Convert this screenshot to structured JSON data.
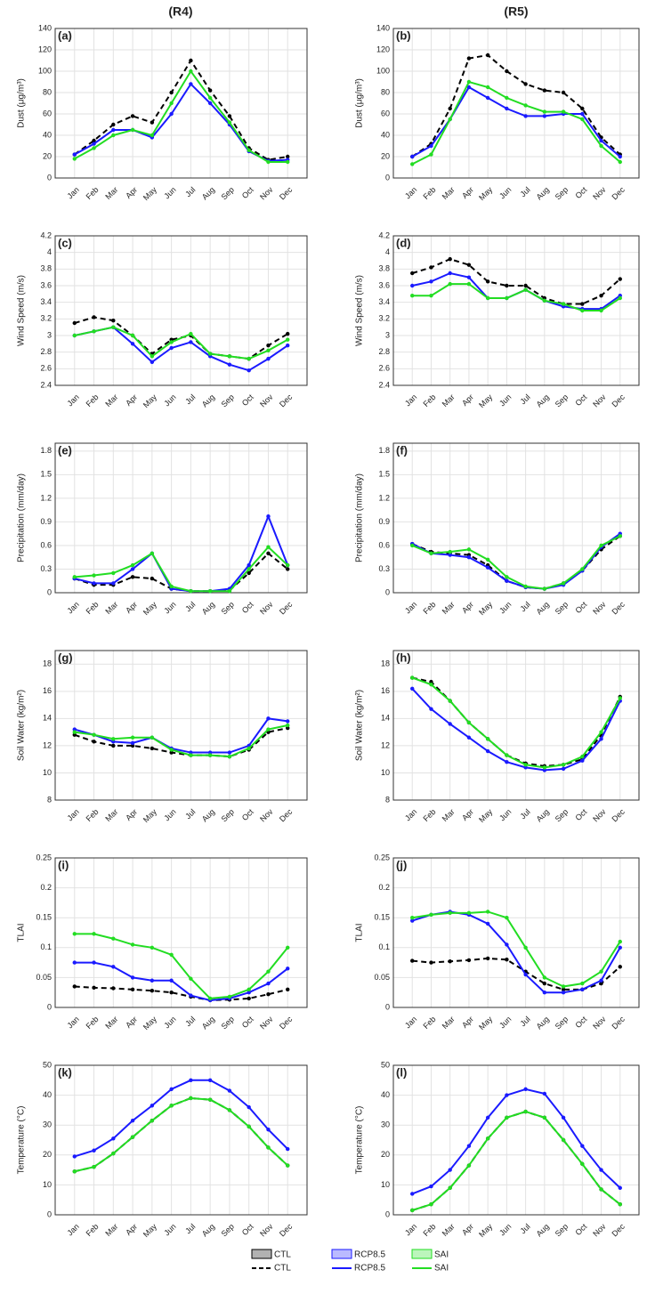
{
  "columns": [
    "(R4)",
    "(R5)"
  ],
  "chart_data": [
    {
      "type": "line",
      "label": "(a)",
      "ylabel": "Dust (μg/m³)",
      "ylim": [
        0,
        140
      ],
      "yticks": [
        0,
        20,
        40,
        60,
        80,
        100,
        120,
        140
      ],
      "grid": true,
      "categories": [
        "Jan",
        "Feb",
        "Mar",
        "Apr",
        "May",
        "Jun",
        "Jul",
        "Aug",
        "Sep",
        "Oct",
        "Nov",
        "Dec"
      ],
      "series": [
        {
          "name": "CTL",
          "color": "#000000",
          "linestyle": "dashed",
          "values": [
            22,
            35,
            50,
            58,
            52,
            80,
            110,
            82,
            58,
            28,
            17,
            20
          ]
        },
        {
          "name": "RCP8.5",
          "color": "#1a1aff",
          "linestyle": "solid",
          "values": [
            22,
            32,
            45,
            45,
            38,
            60,
            88,
            70,
            50,
            25,
            16,
            17
          ]
        },
        {
          "name": "SAI",
          "color": "#22dd22",
          "linestyle": "solid",
          "values": [
            18,
            28,
            40,
            45,
            40,
            70,
            100,
            75,
            52,
            26,
            15,
            15
          ]
        }
      ]
    },
    {
      "type": "line",
      "label": "(b)",
      "ylabel": "Dust (μg/m³)",
      "ylim": [
        0,
        140
      ],
      "yticks": [
        0,
        20,
        40,
        60,
        80,
        100,
        120,
        140
      ],
      "grid": true,
      "categories": [
        "Jan",
        "Feb",
        "Mar",
        "Apr",
        "May",
        "Jun",
        "Jul",
        "Aug",
        "Sep",
        "Oct",
        "Nov",
        "Dec"
      ],
      "series": [
        {
          "name": "CTL",
          "color": "#000000",
          "linestyle": "dashed",
          "values": [
            20,
            32,
            65,
            112,
            115,
            100,
            88,
            82,
            80,
            65,
            38,
            22
          ]
        },
        {
          "name": "RCP8.5",
          "color": "#1a1aff",
          "linestyle": "solid",
          "values": [
            20,
            30,
            55,
            85,
            75,
            65,
            58,
            58,
            60,
            60,
            35,
            20
          ]
        },
        {
          "name": "SAI",
          "color": "#22dd22",
          "linestyle": "solid",
          "values": [
            13,
            22,
            55,
            90,
            85,
            75,
            68,
            62,
            62,
            55,
            30,
            15
          ]
        }
      ]
    },
    {
      "type": "line",
      "label": "(c)",
      "ylabel": "Wind Speed (m/s)",
      "ylim": [
        2.4,
        4.2
      ],
      "yticks": [
        2.4,
        2.6,
        2.8,
        3,
        3.2,
        3.4,
        3.6,
        3.8,
        4,
        4.2
      ],
      "grid": true,
      "categories": [
        "Jan",
        "Feb",
        "Mar",
        "Apr",
        "May",
        "Jun",
        "Jul",
        "Aug",
        "Sep",
        "Oct",
        "Nov",
        "Dec"
      ],
      "series": [
        {
          "name": "CTL",
          "color": "#000000",
          "linestyle": "dashed",
          "values": [
            3.15,
            3.22,
            3.18,
            3.0,
            2.78,
            2.95,
            3.0,
            2.78,
            2.75,
            2.72,
            2.88,
            3.02
          ]
        },
        {
          "name": "RCP8.5",
          "color": "#1a1aff",
          "linestyle": "solid",
          "values": [
            3.0,
            3.05,
            3.1,
            2.9,
            2.68,
            2.85,
            2.92,
            2.75,
            2.65,
            2.58,
            2.72,
            2.88
          ]
        },
        {
          "name": "SAI",
          "color": "#22dd22",
          "linestyle": "solid",
          "values": [
            3.0,
            3.05,
            3.1,
            3.0,
            2.75,
            2.92,
            3.02,
            2.78,
            2.75,
            2.72,
            2.82,
            2.95
          ]
        }
      ]
    },
    {
      "type": "line",
      "label": "(d)",
      "ylabel": "Wind Speed (m/s)",
      "ylim": [
        2.4,
        4.2
      ],
      "yticks": [
        2.4,
        2.6,
        2.8,
        3,
        3.2,
        3.4,
        3.6,
        3.8,
        4,
        4.2
      ],
      "grid": true,
      "categories": [
        "Jan",
        "Feb",
        "Mar",
        "Apr",
        "May",
        "Jun",
        "Jul",
        "Aug",
        "Sep",
        "Oct",
        "Nov",
        "Dec"
      ],
      "series": [
        {
          "name": "CTL",
          "color": "#000000",
          "linestyle": "dashed",
          "values": [
            3.75,
            3.82,
            3.92,
            3.85,
            3.65,
            3.6,
            3.6,
            3.45,
            3.38,
            3.38,
            3.48,
            3.68
          ]
        },
        {
          "name": "RCP8.5",
          "color": "#1a1aff",
          "linestyle": "solid",
          "values": [
            3.6,
            3.65,
            3.75,
            3.7,
            3.45,
            3.45,
            3.55,
            3.42,
            3.35,
            3.32,
            3.32,
            3.48
          ]
        },
        {
          "name": "SAI",
          "color": "#22dd22",
          "linestyle": "solid",
          "values": [
            3.48,
            3.48,
            3.62,
            3.62,
            3.45,
            3.45,
            3.55,
            3.42,
            3.38,
            3.3,
            3.3,
            3.45
          ]
        }
      ]
    },
    {
      "type": "line",
      "label": "(e)",
      "ylabel": "Precipitation (mm/day)",
      "ylim": [
        0,
        1.9
      ],
      "yticks": [
        0,
        0.3,
        0.6,
        0.9,
        1.2,
        1.5,
        1.8
      ],
      "grid": true,
      "categories": [
        "Jan",
        "Feb",
        "Mar",
        "Apr",
        "May",
        "Jun",
        "Jul",
        "Aug",
        "Sep",
        "Oct",
        "Nov",
        "Dec"
      ],
      "series": [
        {
          "name": "CTL",
          "color": "#000000",
          "linestyle": "dashed",
          "values": [
            0.18,
            0.1,
            0.1,
            0.2,
            0.18,
            0.05,
            0.02,
            0.02,
            0.03,
            0.25,
            0.5,
            0.3
          ]
        },
        {
          "name": "RCP8.5",
          "color": "#1a1aff",
          "linestyle": "solid",
          "values": [
            0.18,
            0.12,
            0.12,
            0.3,
            0.5,
            0.05,
            0.02,
            0.02,
            0.05,
            0.35,
            0.97,
            0.35
          ]
        },
        {
          "name": "SAI",
          "color": "#22dd22",
          "linestyle": "solid",
          "values": [
            0.2,
            0.22,
            0.25,
            0.35,
            0.5,
            0.08,
            0.02,
            0.02,
            0.02,
            0.3,
            0.58,
            0.35
          ]
        }
      ]
    },
    {
      "type": "line",
      "label": "(f)",
      "ylabel": "Precipitation (mm/day)",
      "ylim": [
        0,
        1.9
      ],
      "yticks": [
        0,
        0.3,
        0.6,
        0.9,
        1.2,
        1.5,
        1.8
      ],
      "grid": true,
      "categories": [
        "Jan",
        "Feb",
        "Mar",
        "Apr",
        "May",
        "Jun",
        "Jul",
        "Aug",
        "Sep",
        "Oct",
        "Nov",
        "Dec"
      ],
      "series": [
        {
          "name": "CTL",
          "color": "#000000",
          "linestyle": "dashed",
          "values": [
            0.62,
            0.52,
            0.5,
            0.48,
            0.35,
            0.15,
            0.07,
            0.05,
            0.12,
            0.28,
            0.55,
            0.72
          ]
        },
        {
          "name": "RCP8.5",
          "color": "#1a1aff",
          "linestyle": "solid",
          "values": [
            0.62,
            0.5,
            0.48,
            0.45,
            0.32,
            0.15,
            0.07,
            0.05,
            0.1,
            0.28,
            0.58,
            0.75
          ]
        },
        {
          "name": "SAI",
          "color": "#22dd22",
          "linestyle": "solid",
          "values": [
            0.6,
            0.5,
            0.52,
            0.55,
            0.42,
            0.2,
            0.08,
            0.05,
            0.12,
            0.3,
            0.6,
            0.72
          ]
        }
      ]
    },
    {
      "type": "line",
      "label": "(g)",
      "ylabel": "Soil Water (kg/m²)",
      "ylim": [
        8,
        19
      ],
      "yticks": [
        8,
        10,
        12,
        14,
        16,
        18
      ],
      "grid": true,
      "categories": [
        "Jan",
        "Feb",
        "Mar",
        "Apr",
        "May",
        "Jun",
        "Jul",
        "Aug",
        "Sep",
        "Oct",
        "Nov",
        "Dec"
      ],
      "series": [
        {
          "name": "CTL",
          "color": "#000000",
          "linestyle": "dashed",
          "values": [
            12.8,
            12.3,
            12.0,
            12.0,
            11.8,
            11.5,
            11.3,
            11.3,
            11.2,
            11.7,
            13.0,
            13.3
          ]
        },
        {
          "name": "RCP8.5",
          "color": "#1a1aff",
          "linestyle": "solid",
          "values": [
            13.2,
            12.8,
            12.3,
            12.2,
            12.6,
            11.8,
            11.5,
            11.5,
            11.5,
            12.0,
            14.0,
            13.8
          ]
        },
        {
          "name": "SAI",
          "color": "#22dd22",
          "linestyle": "solid",
          "values": [
            13.0,
            12.8,
            12.5,
            12.6,
            12.6,
            11.7,
            11.3,
            11.3,
            11.2,
            11.8,
            13.2,
            13.5
          ]
        }
      ]
    },
    {
      "type": "line",
      "label": "(h)",
      "ylabel": "Soil Water (kg/m²)",
      "ylim": [
        8,
        19
      ],
      "yticks": [
        8,
        10,
        12,
        14,
        16,
        18
      ],
      "grid": true,
      "categories": [
        "Jan",
        "Feb",
        "Mar",
        "Apr",
        "May",
        "Jun",
        "Jul",
        "Aug",
        "Sep",
        "Oct",
        "Nov",
        "Dec"
      ],
      "series": [
        {
          "name": "CTL",
          "color": "#000000",
          "linestyle": "dashed",
          "values": [
            17.0,
            16.7,
            15.3,
            13.7,
            12.5,
            11.3,
            10.7,
            10.5,
            10.6,
            11.0,
            12.8,
            15.6
          ]
        },
        {
          "name": "RCP8.5",
          "color": "#1a1aff",
          "linestyle": "solid",
          "values": [
            16.2,
            14.7,
            13.6,
            12.6,
            11.6,
            10.8,
            10.4,
            10.2,
            10.3,
            10.9,
            12.5,
            15.3
          ]
        },
        {
          "name": "SAI",
          "color": "#22dd22",
          "linestyle": "solid",
          "values": [
            17.0,
            16.5,
            15.3,
            13.7,
            12.5,
            11.3,
            10.6,
            10.4,
            10.6,
            11.2,
            13.0,
            15.5
          ]
        }
      ]
    },
    {
      "type": "line",
      "label": "(i)",
      "ylabel": "TLAI",
      "ylim": [
        0,
        0.25
      ],
      "yticks": [
        0,
        0.05,
        0.1,
        0.15,
        0.2,
        0.25
      ],
      "grid": true,
      "categories": [
        "Jan",
        "Feb",
        "Mar",
        "Apr",
        "May",
        "Jun",
        "Jul",
        "Aug",
        "Sep",
        "Oct",
        "Nov",
        "Dec"
      ],
      "series": [
        {
          "name": "CTL",
          "color": "#000000",
          "linestyle": "dashed",
          "values": [
            0.035,
            0.033,
            0.032,
            0.03,
            0.028,
            0.025,
            0.018,
            0.012,
            0.013,
            0.015,
            0.022,
            0.03
          ]
        },
        {
          "name": "RCP8.5",
          "color": "#1a1aff",
          "linestyle": "solid",
          "values": [
            0.075,
            0.075,
            0.068,
            0.05,
            0.045,
            0.045,
            0.02,
            0.012,
            0.015,
            0.025,
            0.04,
            0.065
          ]
        },
        {
          "name": "SAI",
          "color": "#22dd22",
          "linestyle": "solid",
          "values": [
            0.123,
            0.123,
            0.115,
            0.105,
            0.1,
            0.088,
            0.048,
            0.015,
            0.018,
            0.03,
            0.06,
            0.1
          ]
        }
      ]
    },
    {
      "type": "line",
      "label": "(j)",
      "ylabel": "TLAI",
      "ylim": [
        0,
        0.25
      ],
      "yticks": [
        0,
        0.05,
        0.1,
        0.15,
        0.2,
        0.25
      ],
      "grid": true,
      "categories": [
        "Jan",
        "Feb",
        "Mar",
        "Apr",
        "May",
        "Jun",
        "Jul",
        "Aug",
        "Sep",
        "Oct",
        "Nov",
        "Dec"
      ],
      "series": [
        {
          "name": "CTL",
          "color": "#000000",
          "linestyle": "dashed",
          "values": [
            0.078,
            0.075,
            0.077,
            0.079,
            0.082,
            0.08,
            0.06,
            0.04,
            0.03,
            0.03,
            0.04,
            0.068
          ]
        },
        {
          "name": "RCP8.5",
          "color": "#1a1aff",
          "linestyle": "solid",
          "values": [
            0.145,
            0.155,
            0.16,
            0.155,
            0.14,
            0.105,
            0.055,
            0.025,
            0.025,
            0.03,
            0.045,
            0.1
          ]
        },
        {
          "name": "SAI",
          "color": "#22dd22",
          "linestyle": "solid",
          "values": [
            0.15,
            0.155,
            0.158,
            0.158,
            0.16,
            0.15,
            0.1,
            0.05,
            0.035,
            0.04,
            0.06,
            0.11
          ]
        }
      ]
    },
    {
      "type": "line",
      "label": "(k)",
      "ylabel": "Temperature (°C)",
      "ylim": [
        0,
        50
      ],
      "yticks": [
        0,
        10,
        20,
        30,
        40,
        50
      ],
      "grid": true,
      "categories": [
        "Jan",
        "Feb",
        "Mar",
        "Apr",
        "May",
        "Jun",
        "Jul",
        "Aug",
        "Sep",
        "Oct",
        "Nov",
        "Dec"
      ],
      "series": [
        {
          "name": "CTL",
          "color": "#000000",
          "linestyle": "dashed",
          "values": [
            14.5,
            16,
            20.5,
            26,
            31.5,
            36.5,
            39,
            38.5,
            35,
            29.5,
            22.5,
            16.5
          ]
        },
        {
          "name": "RCP8.5",
          "color": "#1a1aff",
          "linestyle": "solid",
          "values": [
            19.5,
            21.5,
            25.5,
            31.5,
            36.5,
            42,
            45,
            45,
            41.5,
            36,
            28.5,
            22
          ]
        },
        {
          "name": "SAI",
          "color": "#22dd22",
          "linestyle": "solid",
          "values": [
            14.5,
            16,
            20.5,
            26,
            31.5,
            36.5,
            39,
            38.5,
            35,
            29.5,
            22.5,
            16.5
          ]
        }
      ]
    },
    {
      "type": "line",
      "label": "(l)",
      "ylabel": "Temperature (°C)",
      "ylim": [
        0,
        50
      ],
      "yticks": [
        0,
        10,
        20,
        30,
        40,
        50
      ],
      "grid": true,
      "categories": [
        "Jan",
        "Feb",
        "Mar",
        "Apr",
        "May",
        "Jun",
        "Jul",
        "Aug",
        "Sep",
        "Oct",
        "Nov",
        "Dec"
      ],
      "series": [
        {
          "name": "CTL",
          "color": "#000000",
          "linestyle": "dashed",
          "values": [
            1.5,
            3.5,
            9,
            16.5,
            25.5,
            32.5,
            34.5,
            32.5,
            25,
            17,
            8.5,
            3.5
          ]
        },
        {
          "name": "RCP8.5",
          "color": "#1a1aff",
          "linestyle": "solid",
          "values": [
            7,
            9.5,
            15,
            23,
            32.5,
            40,
            42,
            40.5,
            32.5,
            23,
            15,
            9
          ]
        },
        {
          "name": "SAI",
          "color": "#22dd22",
          "linestyle": "solid",
          "values": [
            1.5,
            3.5,
            9,
            16.5,
            25.5,
            32.5,
            34.5,
            32.5,
            25,
            17,
            8.5,
            3.5
          ]
        }
      ]
    }
  ]
}
